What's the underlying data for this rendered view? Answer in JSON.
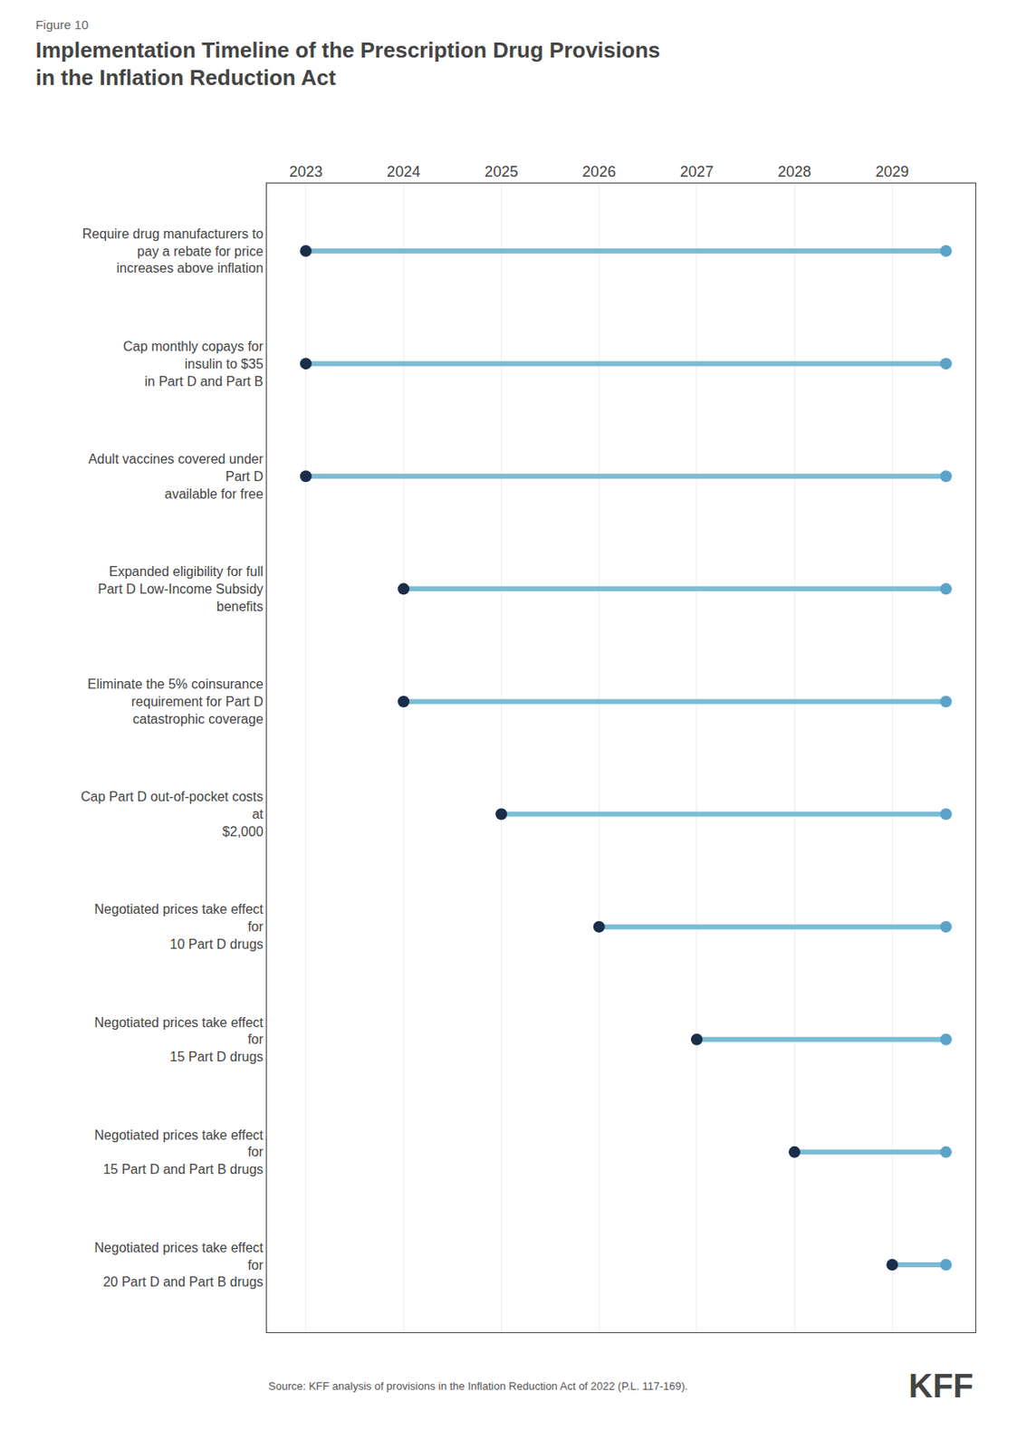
{
  "chart_data": {
    "type": "range",
    "title": [
      "Implementation Timeline of the Prescription Drug Provisions",
      "in the Inflation Reduction Act"
    ],
    "subtitle": "Figure 10",
    "annotations": [
      "Source: KFF analysis of provisions in the Inflation Reduction Act of 2022 (P.L. 117-169).",
      "KFF"
    ],
    "orientation": "horizontal",
    "categories": [
      [
        "Require drug manufacturers to",
        "pay a rebate for price",
        "increases above inflation"
      ],
      [
        "Cap monthly copays for",
        "insulin to $35",
        "in Part D and Part B"
      ],
      [
        "Adult vaccines covered under",
        "Part D",
        "available for free"
      ],
      [
        "Expanded eligibility for full",
        "Part D Low-Income Subsidy",
        "benefits"
      ],
      [
        "Eliminate the 5% coinsurance",
        "requirement for Part D",
        "catastrophic coverage"
      ],
      [
        "Cap Part D out-of-pocket costs",
        "at",
        "$2,000"
      ],
      [
        "Negotiated prices take effect",
        "for",
        "10 Part D drugs"
      ],
      [
        "Negotiated prices take effect",
        "for",
        "15 Part D drugs"
      ],
      [
        "Negotiated prices take effect",
        "for",
        "15 Part D and Part B drugs"
      ],
      [
        "Negotiated prices take effect",
        "for",
        "20 Part D and Part B drugs"
      ]
    ],
    "series": [
      {
        "type": "range",
        "color": "#7bbcd5",
        "values": [
          [
            2023,
            2029.55
          ],
          [
            2023,
            2029.55
          ],
          [
            2023,
            2029.55
          ],
          [
            2024,
            2029.55
          ],
          [
            2024,
            2029.55
          ],
          [
            2025,
            2029.55
          ],
          [
            2026,
            2029.55
          ],
          [
            2027,
            2029.55
          ],
          [
            2028,
            2029.55
          ],
          [
            2029,
            2029.55
          ]
        ]
      },
      {
        "type": "scatter",
        "marker": "circle",
        "color": "#1a2e4a",
        "values": [
          2023,
          2023,
          2023,
          2024,
          2024,
          2025,
          2026,
          2027,
          2028,
          2029
        ]
      },
      {
        "type": "scatter",
        "marker": "circle",
        "color": "#5ba3c9",
        "values": [
          2029.55,
          2029.55,
          2029.55,
          2029.55,
          2029.55,
          2029.55,
          2029.55,
          2029.55,
          2029.55,
          2029.55
        ]
      }
    ],
    "xlim": [
      2022.6,
      2029.85
    ],
    "xticks": [
      2023,
      2024,
      2025,
      2026,
      2027,
      2028,
      2029
    ],
    "grid": true,
    "tick_labels": "x"
  }
}
